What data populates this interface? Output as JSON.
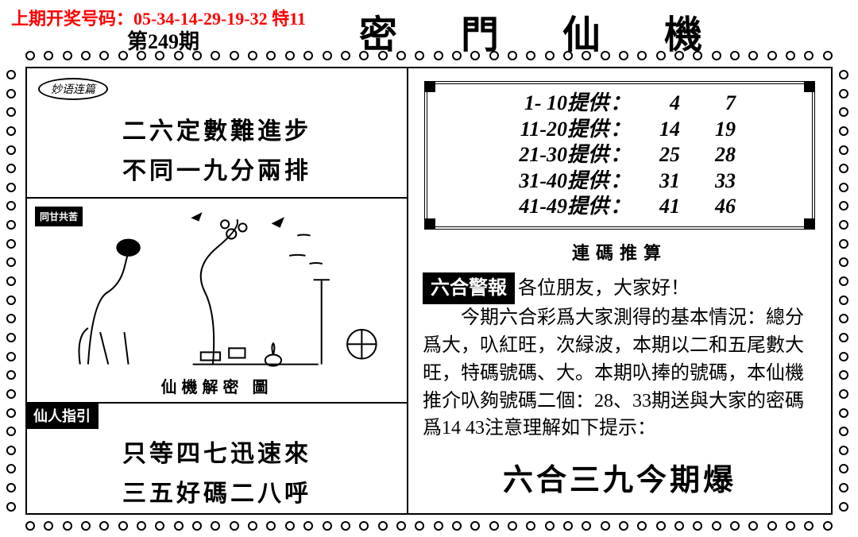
{
  "header": {
    "prev_draw_label": "上期开奖号码：05-34-14-29-19-32 特11",
    "issue": "第249期",
    "title": "密 門 仙 機"
  },
  "left": {
    "top_badge": "妙语连篇",
    "poem1_l1": "二六定數難進步",
    "poem1_l2": "不同一九分兩排",
    "sun_badge": "同甘共苦",
    "illus_caption": "仙機解密 圖",
    "guide_tag": "仙人指引",
    "poem2_l1": "只等四七迅速來",
    "poem2_l2": "三五好碼二八呼"
  },
  "right": {
    "ranges": [
      {
        "range": "1- 10提供",
        "v1": "4",
        "v2": "7"
      },
      {
        "range": "11-20提供",
        "v1": "14",
        "v2": "19"
      },
      {
        "range": "21-30提供",
        "v1": "25",
        "v2": "28"
      },
      {
        "range": "31-40提供",
        "v1": "31",
        "v2": "33"
      },
      {
        "range": "41-49提供",
        "v1": "41",
        "v2": "46"
      }
    ],
    "range_caption": "連碼推算",
    "report_header": "六合警報",
    "report_greeting": "各位朋友，大家好！",
    "report_body": "　　今期六合彩爲大家測得的基本情況：總分爲大，叺紅旺，次緑波，本期以二和五尾數大旺，特碼號碼、大。本期叺捧的號碼，本仙機推介叺夠號碼二個：28、33期送與大家的密碼爲14 43注意理解如下提示：",
    "punchline": "六合三九今期爆"
  },
  "style": {
    "red": "#ff0000",
    "black": "#000000",
    "bg": "#ffffff",
    "poem_fontsize": 30,
    "numbox_fontsize": 26,
    "report_fontsize": 24,
    "punch_fontsize": 38
  }
}
